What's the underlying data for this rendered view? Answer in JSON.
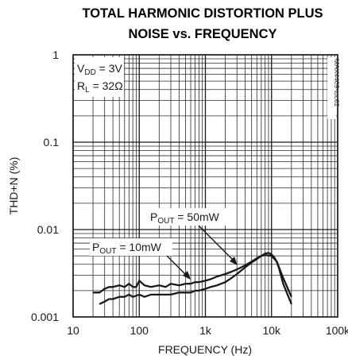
{
  "chart_data": {
    "type": "line",
    "title_lines": [
      "TOTAL HARMONIC DISTORTION PLUS",
      "NOISE vs. FREQUENCY"
    ],
    "xlabel": "FREQUENCY (Hz)",
    "ylabel": "THD+N (%)",
    "x_scale": "log",
    "y_scale": "log",
    "xlim": [
      10,
      100000
    ],
    "ylim": [
      0.001,
      1
    ],
    "x_ticks": [
      {
        "value": 10,
        "label": "10"
      },
      {
        "value": 100,
        "label": "100"
      },
      {
        "value": 1000,
        "label": "1k"
      },
      {
        "value": 10000,
        "label": "10k"
      },
      {
        "value": 100000,
        "label": "100k"
      }
    ],
    "y_ticks": [
      {
        "value": 1,
        "label": "1"
      },
      {
        "value": 0.1,
        "label": "0.1"
      },
      {
        "value": 0.01,
        "label": "0.01"
      },
      {
        "value": 0.001,
        "label": "0.001"
      }
    ],
    "grid": true,
    "conditions": {
      "vdd": {
        "pre": "V",
        "sub": "DD",
        "post": " = 3V"
      },
      "rl": {
        "pre": "R",
        "sub": "L",
        "post": " = 32Ω"
      }
    },
    "part_number": "MAX4409 toc02",
    "series": [
      {
        "name": "P_OUT = 10mW",
        "label": {
          "pre": "P",
          "sub": "OUT",
          "post": " = 10mW"
        },
        "x": [
          20,
          25,
          30,
          35,
          40,
          50,
          60,
          70,
          80,
          90,
          100,
          120,
          150,
          200,
          250,
          300,
          400,
          500,
          600,
          700,
          800,
          1000,
          1200,
          1500,
          2000,
          2500,
          3000,
          3500,
          4000,
          5000,
          6000,
          7000,
          8000,
          10000,
          12000,
          15000,
          20000
        ],
        "y": [
          0.0019,
          0.0019,
          0.0021,
          0.0022,
          0.0022,
          0.0023,
          0.0022,
          0.0024,
          0.0022,
          0.0022,
          0.0026,
          0.0023,
          0.0022,
          0.0023,
          0.0022,
          0.0024,
          0.0023,
          0.0024,
          0.0024,
          0.0025,
          0.0025,
          0.0026,
          0.0027,
          0.0029,
          0.0031,
          0.0033,
          0.0035,
          0.0037,
          0.0039,
          0.0043,
          0.0047,
          0.005,
          0.0051,
          0.005,
          0.0043,
          0.0028,
          0.0017
        ]
      },
      {
        "name": "P_OUT = 50mW",
        "label": {
          "pre": "P",
          "sub": "OUT",
          "post": " = 50mW"
        },
        "x": [
          25,
          30,
          35,
          40,
          50,
          60,
          70,
          80,
          100,
          120,
          150,
          200,
          300,
          400,
          500,
          600,
          700,
          800,
          1000,
          1200,
          1500,
          2000,
          2500,
          3000,
          4000,
          5000,
          6000,
          7000,
          8000,
          9000,
          10000,
          11000,
          12000,
          13000,
          15000,
          20000
        ],
        "y": [
          0.0014,
          0.0015,
          0.0016,
          0.0016,
          0.0017,
          0.0017,
          0.0018,
          0.0017,
          0.0018,
          0.0017,
          0.0018,
          0.0018,
          0.0018,
          0.0019,
          0.0019,
          0.0019,
          0.002,
          0.002,
          0.0021,
          0.0022,
          0.0023,
          0.0025,
          0.0028,
          0.0031,
          0.0037,
          0.0042,
          0.0046,
          0.005,
          0.0053,
          0.0054,
          0.0052,
          0.0048,
          0.0043,
          0.0036,
          0.0024,
          0.0014
        ]
      }
    ]
  }
}
